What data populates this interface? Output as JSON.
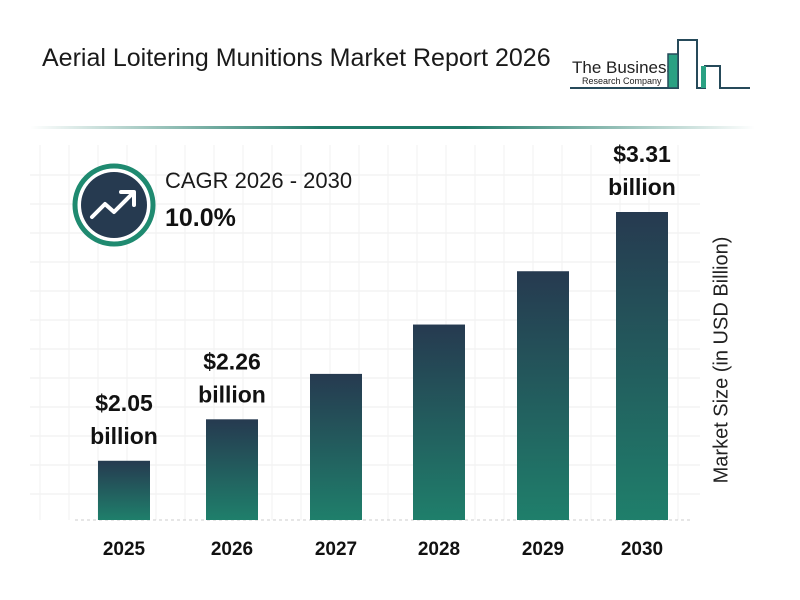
{
  "header": {
    "title": "Aerial Loitering Munitions Market Report 2026",
    "logo_line1": "The Business",
    "logo_line2": "Research Company"
  },
  "cagr": {
    "label": "CAGR 2026 - 2030",
    "value": "10.0%",
    "icon": "trend-up-arrow-icon"
  },
  "colors": {
    "bar_top": "#263a50",
    "bar_bottom": "#1f7f6b",
    "accent": "#1f8a70"
  },
  "chart_data": {
    "type": "bar",
    "categories": [
      "2025",
      "2026",
      "2027",
      "2028",
      "2029",
      "2030"
    ],
    "values": [
      2.05,
      2.26,
      2.49,
      2.74,
      3.01,
      3.31
    ],
    "data_labels": [
      [
        "$2.05",
        "billion"
      ],
      [
        "$2.26",
        "billion"
      ],
      null,
      null,
      null,
      [
        "$3.31",
        "billion"
      ]
    ],
    "ylabel": "Market Size (in USD Billion)",
    "ylim": [
      1.75,
      3.35
    ],
    "grid": true
  }
}
